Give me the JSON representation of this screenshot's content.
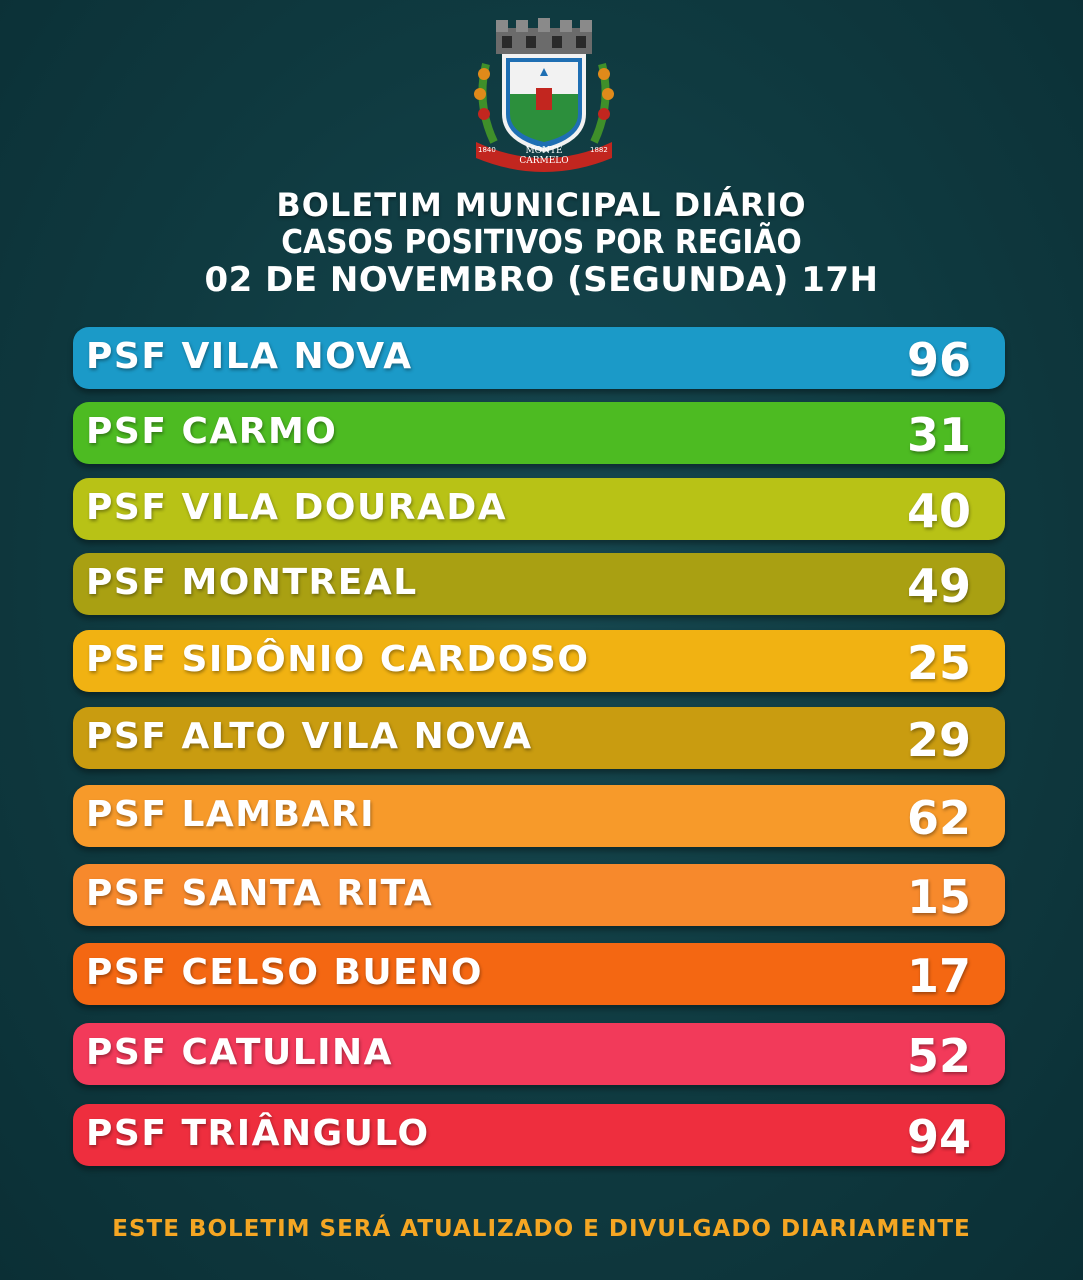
{
  "crest": {
    "label": "MONTE CARMELO",
    "year_left": "1840",
    "year_right": "1882"
  },
  "header": {
    "line1": "BOLETIM MUNICIPAL DIÁRIO",
    "line2": "CASOS POSITIVOS POR REGIÃO",
    "line3": "02 DE NOVEMBRO (SEGUNDA) 17H"
  },
  "regions": [
    {
      "name": "PSF VILA NOVA",
      "value": "96",
      "color": "#1b9ac8"
    },
    {
      "name": "PSF CARMO",
      "value": "31",
      "color": "#4dbb22"
    },
    {
      "name": "PSF VILA DOURADA",
      "value": "40",
      "color": "#b8c216"
    },
    {
      "name": "PSF MONTREAL",
      "value": "49",
      "color": "#a9a012"
    },
    {
      "name": "PSF SIDÔNIO CARDOSO",
      "value": "25",
      "color": "#f1b212"
    },
    {
      "name": "PSF ALTO VILA NOVA",
      "value": "29",
      "color": "#c99c10"
    },
    {
      "name": "PSF LAMBARI",
      "value": "62",
      "color": "#f79a2a"
    },
    {
      "name": "PSF SANTA RITA",
      "value": "15",
      "color": "#f7892c"
    },
    {
      "name": "PSF CELSO BUENO",
      "value": "17",
      "color": "#f46712"
    },
    {
      "name": "PSF CATULINA",
      "value": "52",
      "color": "#f23a5a"
    },
    {
      "name": "PSF TRIÂNGULO",
      "value": "94",
      "color": "#ee2e3e"
    }
  ],
  "footer": "ESTE BOLETIM SERÁ ATUALIZADO E DIVULGADO DIARIAMENTE"
}
